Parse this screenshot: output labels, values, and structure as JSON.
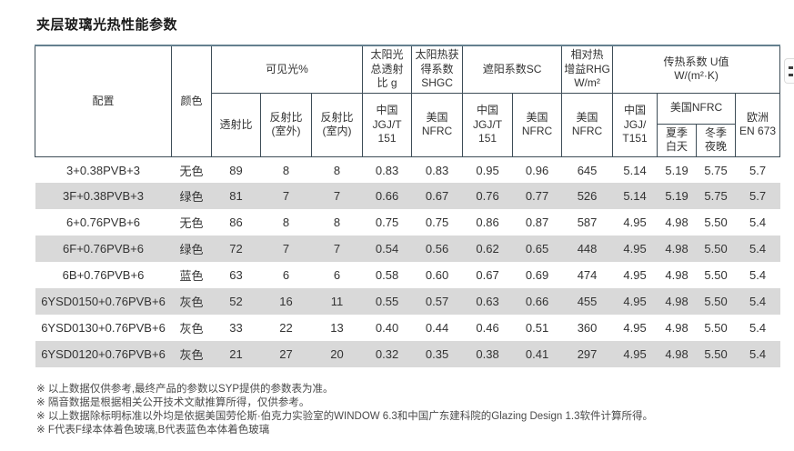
{
  "page": {
    "title": "夹层玻璃光热性能参数"
  },
  "colors": {
    "table_top_border": "#64808f",
    "header_border": "#3e4d57",
    "row_stripe": "#d9d9d9",
    "text": "#333333"
  },
  "table": {
    "header": {
      "config": "配置",
      "color": "颜色",
      "visible_light_group": "可见光%",
      "solar_transmittance_group": "太阳光\n总透射\n比 g",
      "shgc_group": "太阳热获\n得系数\nSHGC",
      "shading_group": "遮阳系数SC",
      "rhg_group": "相对热\n增益RHG\nW/m²",
      "u_value_group": "传热系数 U值\nW/(m²·K)",
      "transmittance": "透射比",
      "reflectance_outdoor": "反射比\n(室外)",
      "reflectance_indoor": "反射比\n(室内)",
      "solar_cn": "中国\nJGJ/T\n151",
      "shgc_us": "美国\nNFRC",
      "shading_cn": "中国\nJGJ/T\n151",
      "shading_us": "美国\nNFRC",
      "rhg_us": "美国\nNFRC",
      "u_cn": "中国\nJGJ/\nT151",
      "u_us": "美国NFRC",
      "u_us_summer": "夏季\n白天",
      "u_us_winter": "冬季\n夜晚",
      "u_eu": "欧洲\nEN 673"
    },
    "rows": [
      [
        "3+0.38PVB+3",
        "无色",
        "89",
        "8",
        "8",
        "0.83",
        "0.83",
        "0.95",
        "0.96",
        "645",
        "5.14",
        "5.19",
        "5.75",
        "5.7"
      ],
      [
        "3F+0.38PVB+3",
        "绿色",
        "81",
        "7",
        "7",
        "0.66",
        "0.67",
        "0.76",
        "0.77",
        "526",
        "5.14",
        "5.19",
        "5.75",
        "5.7"
      ],
      [
        "6+0.76PVB+6",
        "无色",
        "86",
        "8",
        "8",
        "0.75",
        "0.75",
        "0.86",
        "0.87",
        "587",
        "4.95",
        "4.98",
        "5.50",
        "5.4"
      ],
      [
        "6F+0.76PVB+6",
        "绿色",
        "72",
        "7",
        "7",
        "0.54",
        "0.56",
        "0.62",
        "0.65",
        "448",
        "4.95",
        "4.98",
        "5.50",
        "5.4"
      ],
      [
        "6B+0.76PVB+6",
        "蓝色",
        "63",
        "6",
        "6",
        "0.58",
        "0.60",
        "0.67",
        "0.69",
        "474",
        "4.95",
        "4.98",
        "5.50",
        "5.4"
      ],
      [
        "6YSD0150+0.76PVB+6",
        "灰色",
        "52",
        "16",
        "11",
        "0.55",
        "0.57",
        "0.63",
        "0.66",
        "455",
        "4.95",
        "4.98",
        "5.50",
        "5.4"
      ],
      [
        "6YSD0130+0.76PVB+6",
        "灰色",
        "33",
        "22",
        "13",
        "0.40",
        "0.44",
        "0.46",
        "0.51",
        "360",
        "4.95",
        "4.98",
        "5.50",
        "5.4"
      ],
      [
        "6YSD0120+0.76PVB+6",
        "灰色",
        "21",
        "27",
        "20",
        "0.32",
        "0.35",
        "0.38",
        "0.41",
        "297",
        "4.95",
        "4.98",
        "5.50",
        "5.4"
      ]
    ]
  },
  "footnotes": [
    "※ 以上数据仅供参考,最终产品的参数以SYP提供的参数表为准。",
    "※ 隔音数据是根据相关公开技术文献推算所得，仅供参考。",
    "※ 以上数据除标明标准以外均是依据美国劳伦斯·伯克力实验室的WINDOW 6.3和中国广东建科院的Glazing Design 1.3软件计算所得。",
    "※ F代表F绿本体着色玻璃,B代表蓝色本体着色玻璃"
  ]
}
